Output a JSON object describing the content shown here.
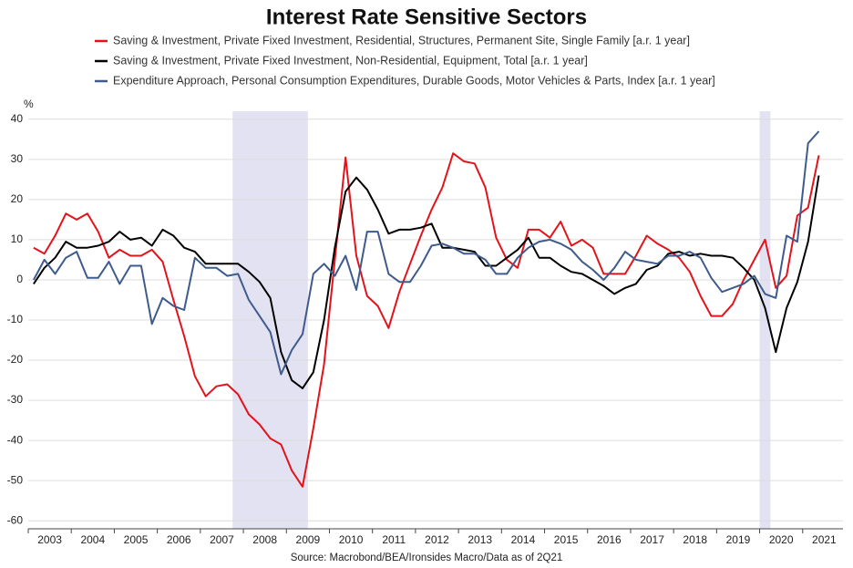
{
  "chart_data": {
    "type": "line",
    "title": "Interest Rate Sensitive Sectors",
    "y_label": "%",
    "source": "Source: Macrobond/BEA/Ironsides Macro/Data as of 2Q21",
    "x": [
      2003.125,
      2003.375,
      2003.625,
      2003.875,
      2004.125,
      2004.375,
      2004.625,
      2004.875,
      2005.125,
      2005.375,
      2005.625,
      2005.875,
      2006.125,
      2006.375,
      2006.625,
      2006.875,
      2007.125,
      2007.375,
      2007.625,
      2007.875,
      2008.125,
      2008.375,
      2008.625,
      2008.875,
      2009.125,
      2009.375,
      2009.625,
      2009.875,
      2010.125,
      2010.375,
      2010.625,
      2010.875,
      2011.125,
      2011.375,
      2011.625,
      2011.875,
      2012.125,
      2012.375,
      2012.625,
      2012.875,
      2013.125,
      2013.375,
      2013.625,
      2013.875,
      2014.125,
      2014.375,
      2014.625,
      2014.875,
      2015.125,
      2015.375,
      2015.625,
      2015.875,
      2016.125,
      2016.375,
      2016.625,
      2016.875,
      2017.125,
      2017.375,
      2017.625,
      2017.875,
      2018.125,
      2018.375,
      2018.625,
      2018.875,
      2019.125,
      2019.375,
      2019.625,
      2019.875,
      2020.125,
      2020.375,
      2020.625,
      2020.875,
      2021.125,
      2021.375
    ],
    "series": [
      {
        "name": "Saving & Investment, Private Fixed Investment, Residential, Structures, Permanent Site, Single Family [a.r. 1 year]",
        "color": "#e3131b",
        "values": [
          8,
          6.5,
          11,
          16.5,
          15,
          16.5,
          12,
          5.5,
          7.5,
          6,
          6,
          7.5,
          4.5,
          -5,
          -14,
          -24,
          -29,
          -26.5,
          -26,
          -28.5,
          -33.5,
          -36,
          -39.5,
          -41,
          -47.5,
          -51.5,
          -37,
          -21,
          5,
          30.5,
          6,
          -4,
          -6.5,
          -12,
          -3,
          4,
          11,
          17.5,
          23,
          31.5,
          29.5,
          29,
          23,
          10.5,
          5,
          3,
          12.5,
          12.5,
          10.5,
          14.5,
          8.5,
          10,
          8,
          1.5,
          1.5,
          1.5,
          6,
          11,
          9,
          7.5,
          5.5,
          2,
          -4,
          -9,
          -9,
          -6,
          0,
          5,
          10,
          -2,
          1,
          16,
          18,
          31
        ]
      },
      {
        "name": "Saving & Investment, Private Fixed Investment, Non-Residential, Equipment, Total [a.r. 1 year]",
        "color": "#000000",
        "values": [
          -1,
          3,
          5.5,
          9.5,
          8,
          8,
          8.5,
          9.5,
          12,
          10,
          10.5,
          8.5,
          12.5,
          11,
          8,
          7,
          4,
          4,
          4,
          4,
          2,
          -0.5,
          -4.5,
          -18,
          -25,
          -27,
          -23,
          -10,
          8,
          22,
          25.5,
          22.5,
          17.5,
          11.5,
          12.5,
          12.5,
          13,
          14,
          8,
          8,
          7.5,
          7,
          3.5,
          3.5,
          5.5,
          7.5,
          10.5,
          5.5,
          5.5,
          3.5,
          2,
          1.5,
          0,
          -1.5,
          -3.5,
          -2,
          -1,
          2.5,
          3.5,
          6.5,
          7,
          6,
          6.5,
          6,
          6,
          5.5,
          3,
          0,
          -7,
          -18,
          -7,
          -0.5,
          9.5,
          26
        ]
      },
      {
        "name": "Expenditure Approach, Personal Consumption Expenditures, Durable Goods, Motor Vehicles & Parts, Index [a.r. 1 year]",
        "color": "#3e5b8c",
        "values": [
          0,
          5,
          1.5,
          5.5,
          7,
          0.5,
          0.5,
          4.5,
          -1,
          3.5,
          3.5,
          -11,
          -4.5,
          -6.5,
          -7.5,
          5.5,
          3,
          3,
          1,
          1.5,
          -5,
          -9,
          -13,
          -23.5,
          -17.5,
          -13.5,
          1.5,
          4,
          1,
          6,
          -2.5,
          12,
          12,
          1.5,
          -0.5,
          -0.5,
          3.5,
          8.5,
          9,
          8,
          6.5,
          6.5,
          5,
          1.5,
          1.5,
          5.5,
          8,
          9.5,
          10,
          9,
          7.5,
          4.5,
          2.5,
          0,
          3,
          7,
          5,
          4.5,
          4,
          6,
          6,
          7,
          5.5,
          0.5,
          -3,
          -2,
          -1,
          1,
          -3.5,
          -4.5,
          11,
          9.5,
          34,
          37
        ]
      }
    ],
    "shaded_periods": [
      [
        2007.75,
        2009.5
      ],
      [
        2020,
        2020.25
      ]
    ],
    "shade_color": "#e2e2f2",
    "xlim": [
      2003,
      2022
    ],
    "xticks": [
      {
        "value": 2003.5,
        "label": "2003"
      },
      {
        "value": 2004.5,
        "label": "2004"
      },
      {
        "value": 2005.5,
        "label": "2005"
      },
      {
        "value": 2006.5,
        "label": "2006"
      },
      {
        "value": 2007.5,
        "label": "2007"
      },
      {
        "value": 2008.5,
        "label": "2008"
      },
      {
        "value": 2009.5,
        "label": "2009"
      },
      {
        "value": 2010.5,
        "label": "2010"
      },
      {
        "value": 2011.5,
        "label": "2011"
      },
      {
        "value": 2012.5,
        "label": "2012"
      },
      {
        "value": 2013.5,
        "label": "2013"
      },
      {
        "value": 2014.5,
        "label": "2014"
      },
      {
        "value": 2015.5,
        "label": "2015"
      },
      {
        "value": 2016.5,
        "label": "2016"
      },
      {
        "value": 2017.5,
        "label": "2017"
      },
      {
        "value": 2018.5,
        "label": "2018"
      },
      {
        "value": 2019.5,
        "label": "2019"
      },
      {
        "value": 2020.5,
        "label": "2020"
      },
      {
        "value": 2021.5,
        "label": "2021"
      }
    ],
    "ylim": [
      -62,
      42
    ],
    "yticks": [
      -60,
      -50,
      -40,
      -30,
      -20,
      -10,
      0,
      10,
      20,
      30,
      40
    ],
    "grid": true
  }
}
